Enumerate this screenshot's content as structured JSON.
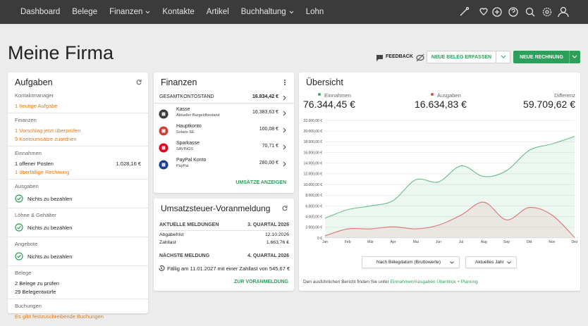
{
  "nav": {
    "items": [
      {
        "label": "Dashboard",
        "dropdown": false
      },
      {
        "label": "Belege",
        "dropdown": false
      },
      {
        "label": "Finanzen",
        "dropdown": true
      },
      {
        "label": "Kontakte",
        "dropdown": false
      },
      {
        "label": "Artikel",
        "dropdown": false
      },
      {
        "label": "Buchhaltung",
        "dropdown": true
      },
      {
        "label": "Lohn",
        "dropdown": false
      }
    ]
  },
  "page_title": "Meine Firma",
  "toolbar": {
    "feedback": "FEEDBACK",
    "new_document": "NEUE BELEG ERFASSEN",
    "new_invoice": "NEUE RECHNUNG"
  },
  "tasks": {
    "title": "Aufgaben",
    "groups": [
      {
        "label": "Kontaktmanager",
        "items": [
          {
            "text": "1 heutige Aufgabe",
            "style": "link"
          }
        ]
      },
      {
        "label": "Finanzen",
        "items": [
          {
            "text": "1 Vorschlag jetzt überprüfen",
            "style": "link"
          },
          {
            "text": "9 Kontoumsätze zuordnen",
            "style": "link"
          }
        ]
      },
      {
        "label": "Einnahmen",
        "items": [
          {
            "text": "1 offener Posten",
            "amount": "1.028,16 €",
            "style": "plain"
          },
          {
            "text": "1 überfällige Rechnung",
            "style": "link"
          }
        ]
      },
      {
        "label": "Ausgaben",
        "items": [
          {
            "text": "Nichts zu bezahlen",
            "style": "ok"
          }
        ]
      },
      {
        "label": "Löhne & Gehälter",
        "items": [
          {
            "text": "Nichts zu bezahlen",
            "style": "ok"
          }
        ]
      },
      {
        "label": "Angebote",
        "items": [
          {
            "text": "Nichts zu bezahlen",
            "style": "ok"
          }
        ]
      },
      {
        "label": "Belege",
        "items": [
          {
            "text": "2 Belege zu prüfen",
            "style": "plain"
          },
          {
            "text": "29 Belegentwürfe",
            "style": "plain"
          }
        ]
      },
      {
        "label": "Buchungen",
        "items": [
          {
            "text": "Es gibt festzuschreibende Buchungen",
            "style": "link"
          }
        ]
      }
    ]
  },
  "finances": {
    "title": "Finanzen",
    "total_label": "GESAMTKONTOSTAND",
    "total": "16.834,42 €",
    "accounts": [
      {
        "name": "Kasse",
        "detail": "Aktueller Bargeldbestand",
        "balance": "16.383,63 €"
      },
      {
        "name": "Hauptkonto",
        "detail": "Solaris SE",
        "balance": "100,08 €"
      },
      {
        "name": "Sparkasse",
        "detail": "SAVINGS",
        "balance": "70,71 €"
      },
      {
        "name": "PayPal Konto",
        "detail": "PayPal",
        "balance": "280,00 €"
      }
    ],
    "link": "UMSÄTZE ANZEIGEN"
  },
  "vat": {
    "title": "Umsatzsteuer-Voranmeldung",
    "current_label": "AKTUELLE MELDUNGEN",
    "current_period": "3. QUARTAL 2026",
    "rows": [
      {
        "label": "Abgabefrist",
        "value": "12.10.2026"
      },
      {
        "label": "Zahllast",
        "value": "1.663,76 €"
      }
    ],
    "next_label": "NÄCHSTE MELDUNG",
    "next_period": "4. QUARTAL 2026",
    "next_note": "Fällig am 11.01.2027 mit einer Zahllast von 545,67 €",
    "link": "ZUR VORANMELDUNG"
  },
  "overview": {
    "title": "Übersicht",
    "income_label": "Einnahmen",
    "income": "76.344,45 €",
    "expense_label": "Ausgaben",
    "expense": "16.634,83 €",
    "diff_label": "Differenz",
    "diff": "59.709,62 €",
    "filter_date": "Nach Belegdatum (Bruttowerte)",
    "filter_period": "Aktuelles Jahr",
    "footer_text": "Den ausführlichen Bericht finden Sie unter ",
    "footer_link": "Einnahmen/Ausgaben Überblick + Planung"
  },
  "chart_data": {
    "type": "line",
    "categories": [
      "Jan",
      "Feb",
      "Mär",
      "Apr",
      "Mai",
      "Jun",
      "Jul",
      "Aug",
      "Sep",
      "Okt",
      "Nov",
      "Dez"
    ],
    "series": [
      {
        "name": "Einnahmen",
        "color": "#3aa864",
        "values": [
          3700,
          5300,
          6000,
          7000,
          10900,
          10500,
          13500,
          11500,
          12600,
          16400,
          17600,
          19000
        ]
      },
      {
        "name": "Ausgaben",
        "color": "#d0504a",
        "values": [
          400,
          1700,
          1700,
          2100,
          1700,
          2400,
          4300,
          6700,
          3400,
          5700,
          4300,
          100
        ]
      }
    ],
    "ylim": [
      0,
      22000
    ],
    "yticks": [
      {
        "value": 0,
        "label": "0 €"
      },
      {
        "value": 2000,
        "label": "2.000,00 €"
      },
      {
        "value": 4000,
        "label": "4.000,00 €"
      },
      {
        "value": 6000,
        "label": "6.000,00 €"
      },
      {
        "value": 8000,
        "label": "8.000,00 €"
      },
      {
        "value": 10000,
        "label": "10.000,00 €"
      },
      {
        "value": 12000,
        "label": "12.000,00 €"
      },
      {
        "value": 14000,
        "label": "14.000,00 €"
      },
      {
        "value": 16000,
        "label": "16.000,00 €"
      },
      {
        "value": 18000,
        "label": "18.000,00 €"
      },
      {
        "value": 20000,
        "label": "20.000,00 €"
      },
      {
        "value": 22000,
        "label": "22.000,00 €"
      }
    ],
    "grid": true
  }
}
